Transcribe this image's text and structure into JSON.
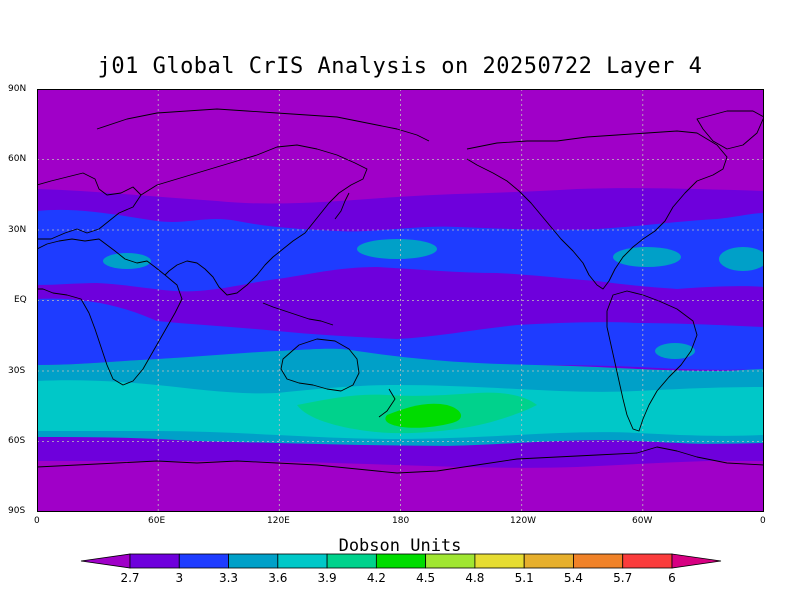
{
  "title": "j01 Global CrIS Analysis on 20250722 Layer 4",
  "colorbar": {
    "title": "Dobson Units",
    "labels": [
      "2.7",
      "3",
      "3.3",
      "3.6",
      "3.9",
      "4.2",
      "4.5",
      "4.8",
      "5.1",
      "5.4",
      "5.7",
      "6"
    ],
    "colors": [
      "#a000c8",
      "#6e00dc",
      "#1e3cff",
      "#00a0c8",
      "#00c8c8",
      "#00d28c",
      "#00dc00",
      "#a0e632",
      "#e6dc32",
      "#e6af2d",
      "#f08228",
      "#fa3c3c",
      "#d70082"
    ]
  },
  "axes": {
    "y_labels": [
      "90N",
      "60N",
      "30N",
      "EQ",
      "30S",
      "60S",
      "90S"
    ],
    "x_labels": [
      "0",
      "60E",
      "120E",
      "180",
      "120W",
      "60W",
      "0"
    ]
  },
  "map_data": {
    "type": "filled-contour-map",
    "projection": "equirectangular",
    "lon_range": [
      0,
      360
    ],
    "lat_range": [
      -90,
      90
    ],
    "grid": true,
    "units": "Dobson Units"
  }
}
